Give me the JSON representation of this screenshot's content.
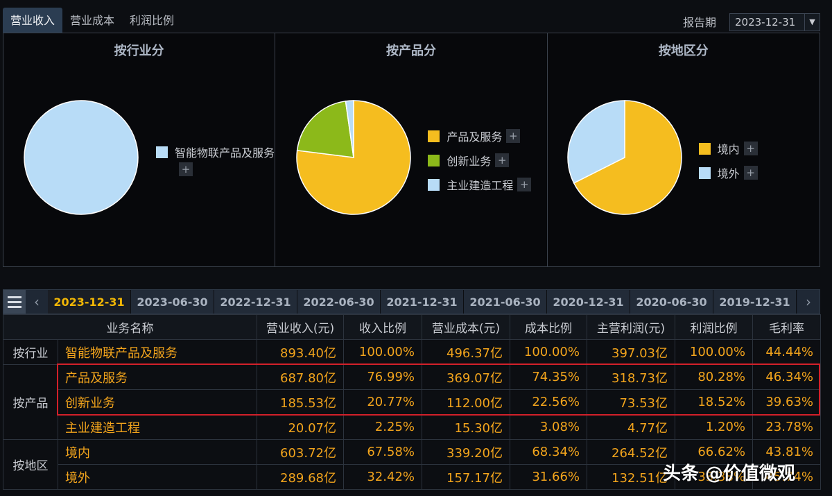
{
  "top_tabs": [
    "营业收入",
    "营业成本",
    "利润比例"
  ],
  "period": {
    "label": "报告期",
    "value": "2023-12-31"
  },
  "panels": [
    {
      "title": "按行业分",
      "slices": [
        {
          "name": "智能物联产品及服务",
          "value": 100.0,
          "color": "#b8dcf7"
        }
      ]
    },
    {
      "title": "按产品分",
      "slices": [
        {
          "name": "产品及服务",
          "value": 76.99,
          "color": "#f5bd1f"
        },
        {
          "name": "创新业务",
          "value": 20.77,
          "color": "#8cb91a"
        },
        {
          "name": "主业建造工程",
          "value": 2.25,
          "color": "#b8dcf7"
        }
      ]
    },
    {
      "title": "按地区分",
      "slices": [
        {
          "name": "境内",
          "value": 67.58,
          "color": "#f5bd1f"
        },
        {
          "name": "境外",
          "value": 32.42,
          "color": "#b8dcf7"
        }
      ]
    }
  ],
  "plus_glyph": "+",
  "date_tabs": [
    "2023-12-31",
    "2023-06-30",
    "2022-12-31",
    "2022-06-30",
    "2021-12-31",
    "2021-06-30",
    "2020-12-31",
    "2020-06-30",
    "2019-12-31"
  ],
  "nav": {
    "prev": "‹",
    "next": "›"
  },
  "table": {
    "headers": [
      "业务名称",
      "营业收入(元)",
      "收入比例",
      "营业成本(元)",
      "成本比例",
      "主营利润(元)",
      "利润比例",
      "毛利率"
    ],
    "groups": [
      {
        "label": "按行业",
        "rows": [
          [
            "智能物联产品及服务",
            "893.40亿",
            "100.00%",
            "496.37亿",
            "100.00%",
            "397.03亿",
            "100.00%",
            "44.44%"
          ]
        ]
      },
      {
        "label": "按产品",
        "rows": [
          [
            "产品及服务",
            "687.80亿",
            "76.99%",
            "369.07亿",
            "74.35%",
            "318.73亿",
            "80.28%",
            "46.34%"
          ],
          [
            "创新业务",
            "185.53亿",
            "20.77%",
            "112.00亿",
            "22.56%",
            "73.53亿",
            "18.52%",
            "39.63%"
          ],
          [
            "主业建造工程",
            "20.07亿",
            "2.25%",
            "15.30亿",
            "3.08%",
            "4.77亿",
            "1.20%",
            "23.78%"
          ]
        ]
      },
      {
        "label": "按地区",
        "rows": [
          [
            "境内",
            "603.72亿",
            "67.58%",
            "339.20亿",
            "68.34%",
            "264.52亿",
            "66.62%",
            "43.81%"
          ],
          [
            "境外",
            "289.68亿",
            "32.42%",
            "157.17亿",
            "31.66%",
            "132.51亿",
            "33.38%",
            "45.74%"
          ]
        ]
      }
    ]
  },
  "watermark": "头条 @价值微观"
}
